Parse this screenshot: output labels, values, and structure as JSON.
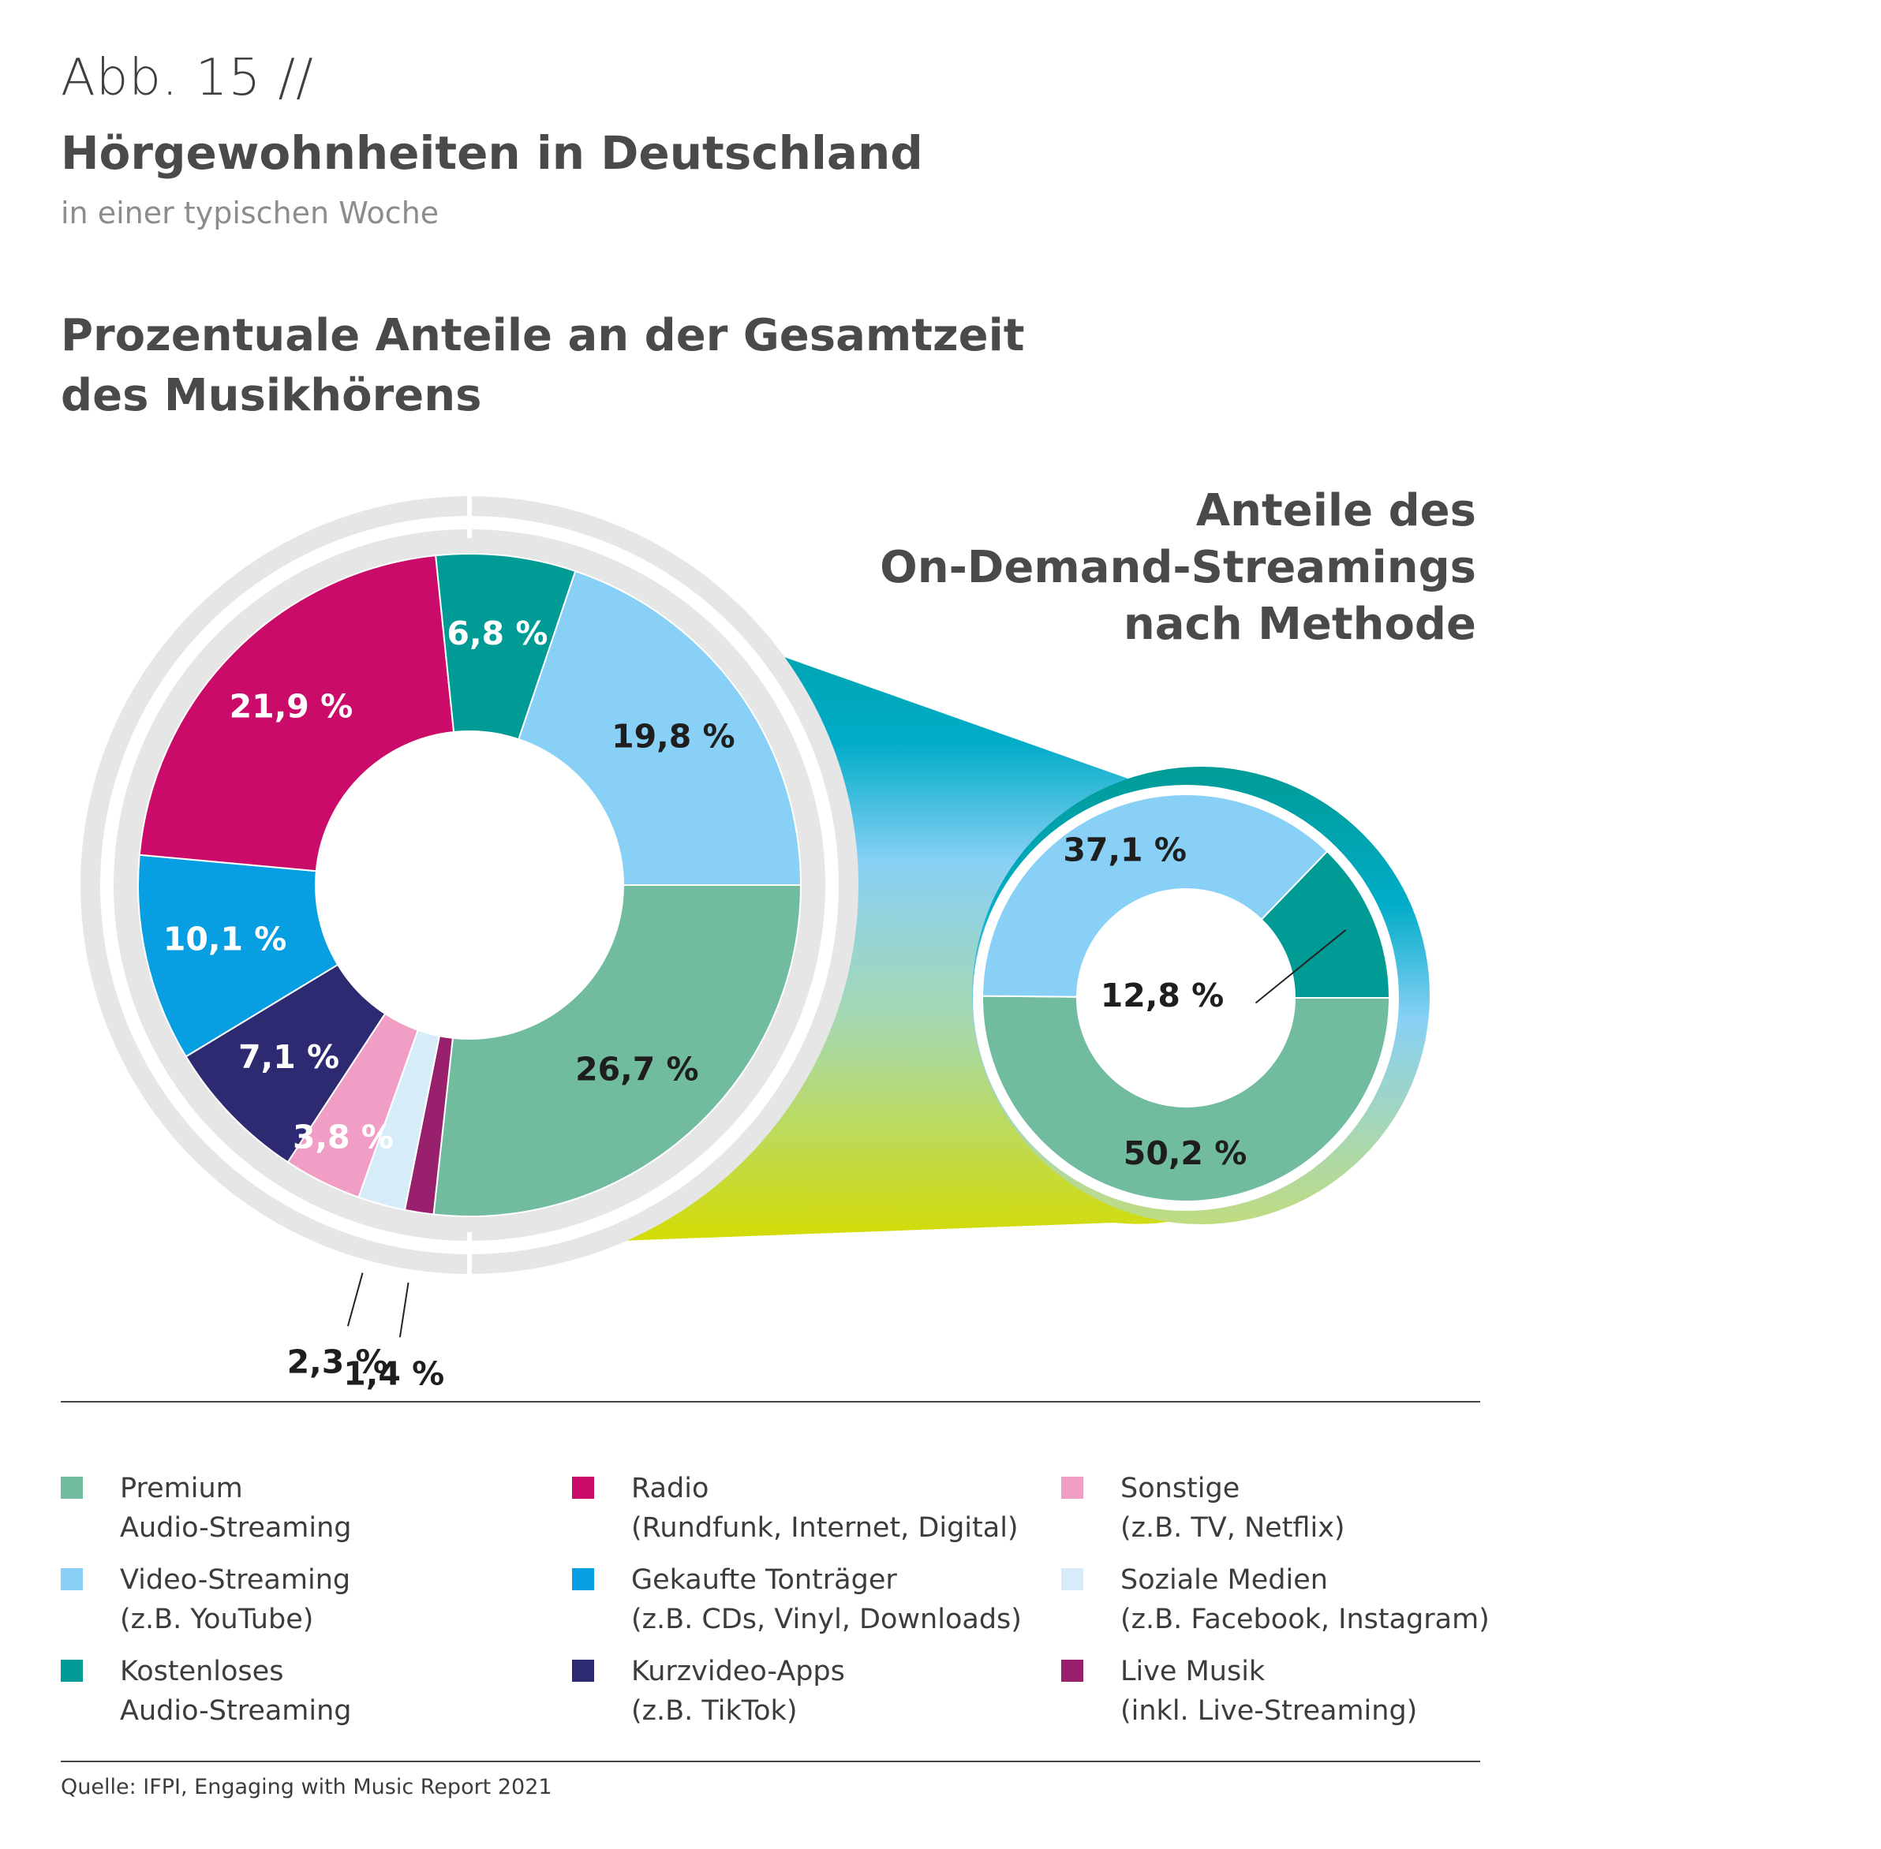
{
  "header": {
    "figure_label": "Abb. 15 //",
    "title": "Hörgewohnheiten in Deutschland",
    "subtitle": "in einer typischen Woche"
  },
  "chart_title_lines": [
    "Prozentuale Anteile an der Gesamtzeit",
    "des Musikhörens"
  ],
  "detail_title_lines": [
    "Anteile des",
    "On-Demand-Streamings",
    "nach Methode"
  ],
  "chart_data": [
    {
      "type": "pie",
      "variant": "donut",
      "title": "Prozentuale Anteile an der Gesamtzeit des Musikhörens",
      "unit": "%",
      "slices": [
        {
          "category": "Premium Audio-Streaming",
          "value": 26.7,
          "label": "26,7 %",
          "color": "#71bc9f",
          "label_color": "#1e1e1e"
        },
        {
          "category": "Live Musik (inkl. Live-Streaming)",
          "value": 1.4,
          "label": "1,4 %",
          "color": "#98206d",
          "label_color": "#1e1e1e"
        },
        {
          "category": "Soziale Medien (z.B. Facebook, Instagram)",
          "value": 2.3,
          "label": "2,3 %",
          "color": "#d6ecf9",
          "label_color": "#1e1e1e"
        },
        {
          "category": "Sonstige (z.B. TV, Netflix)",
          "value": 3.8,
          "label": "3,8 %",
          "color": "#f09ec6",
          "label_color": "#ffffff"
        },
        {
          "category": "Kurzvideo-Apps (z.B. TikTok)",
          "value": 7.1,
          "label": "7,1 %",
          "color": "#2d2a72",
          "label_color": "#ffffff"
        },
        {
          "category": "Gekaufte Tonträger (z.B. CDs, Vinyl, Downloads)",
          "value": 10.1,
          "label": "10,1 %",
          "color": "#079fe1",
          "label_color": "#ffffff"
        },
        {
          "category": "Radio (Rundfunk, Internet, Digital)",
          "value": 21.9,
          "label": "21,9 %",
          "color": "#cb0b69",
          "label_color": "#ffffff"
        },
        {
          "category": "Kostenloses Audio-Streaming",
          "value": 6.8,
          "label": "6,8 %",
          "color": "#009b95",
          "label_color": "#ffffff"
        },
        {
          "category": "Video-Streaming (z.B. YouTube)",
          "value": 19.8,
          "label": "19,8 %",
          "color": "#88d0f5",
          "label_color": "#1e1e1e"
        }
      ]
    },
    {
      "type": "pie",
      "variant": "donut",
      "title": "Anteile des On-Demand-Streamings nach Methode",
      "unit": "%",
      "slices": [
        {
          "category": "Premium Audio-Streaming",
          "value": 50.2,
          "label": "50,2 %",
          "color": "#71bc9f",
          "label_color": "#1e1e1e"
        },
        {
          "category": "Video-Streaming (z.B. YouTube)",
          "value": 37.1,
          "label": "37,1 %",
          "color": "#88d0f5",
          "label_color": "#1e1e1e"
        },
        {
          "category": "Kostenloses Audio-Streaming",
          "value": 12.8,
          "label": "12,8 %",
          "color": "#009b95",
          "label_color": "#1e1e1e"
        }
      ]
    }
  ],
  "legend": [
    {
      "line1": "Premium",
      "line2": "Audio-Streaming",
      "color": "#71bc9f"
    },
    {
      "line1": "Video-Streaming",
      "line2": "(z.B. YouTube)",
      "color": "#88d0f5"
    },
    {
      "line1": "Kostenloses",
      "line2": "Audio-Streaming",
      "color": "#009b95"
    },
    {
      "line1": "Radio",
      "line2": "(Rundfunk, Internet, Digital)",
      "color": "#cb0b69"
    },
    {
      "line1": "Gekaufte Tonträger",
      "line2": "(z.B. CDs, Vinyl, Downloads)",
      "color": "#079fe1"
    },
    {
      "line1": "Kurzvideo-Apps",
      "line2": "(z.B. TikTok)",
      "color": "#2d2a72"
    },
    {
      "line1": "Sonstige",
      "line2": "(z.B. TV, Netflix)",
      "color": "#f09ec6"
    },
    {
      "line1": "Soziale Medien",
      "line2": "(z.B. Facebook, Instagram)",
      "color": "#d6ecf9"
    },
    {
      "line1": "Live Musik",
      "line2": "(inkl. Live-Streaming)",
      "color": "#98206d"
    }
  ],
  "source": "Quelle: IFPI, Engaging with Music Report 2021"
}
